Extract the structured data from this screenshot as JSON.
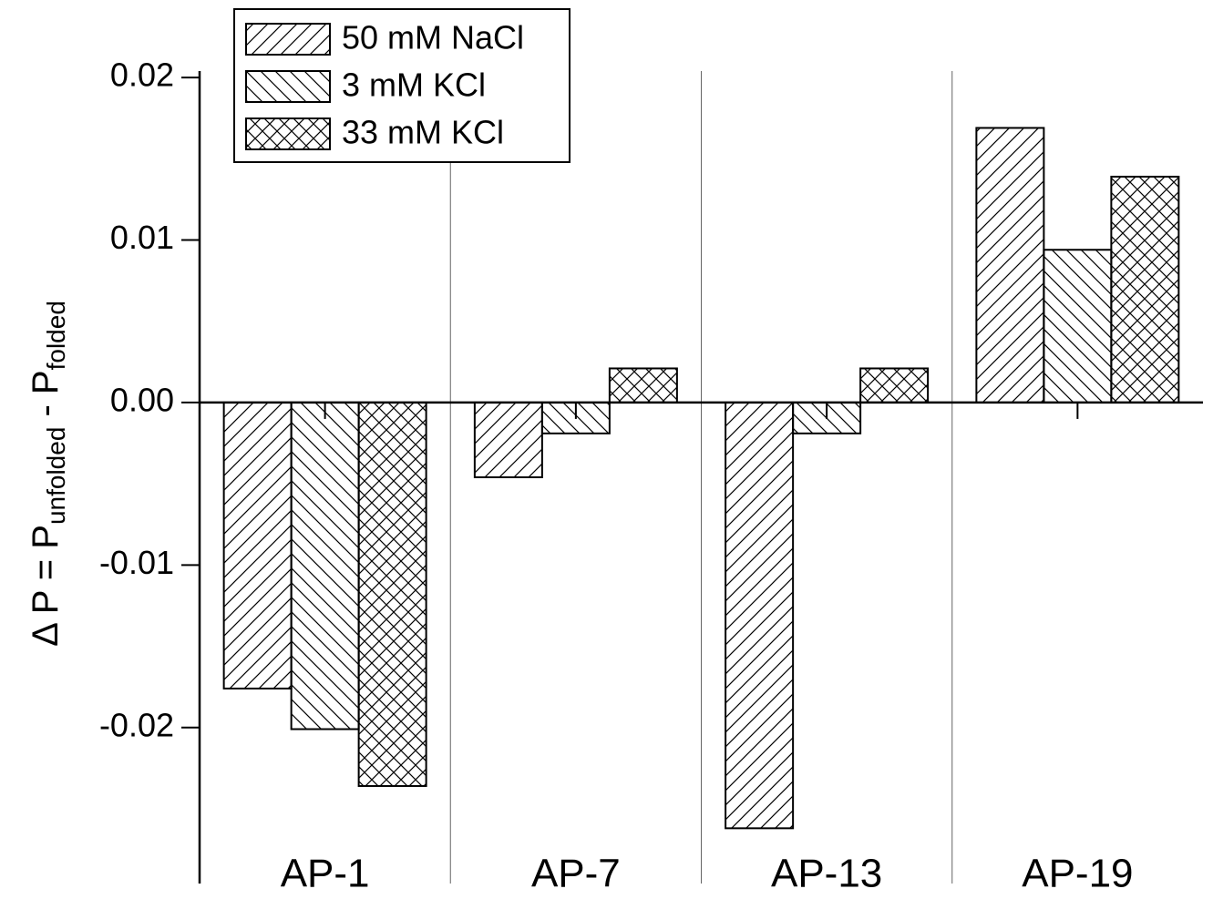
{
  "chart_data": {
    "type": "bar",
    "ylabel": {
      "main": "Δ P = P",
      "sub1": "unfolded",
      "mid": " - P",
      "sub2": "folded"
    },
    "categories": [
      "AP-1",
      "AP-7",
      "AP-13",
      "AP-19"
    ],
    "series": [
      {
        "name": "50 mM NaCl",
        "color": "#000000",
        "hatch": "/",
        "values": [
          -0.0176,
          -0.0046,
          -0.0262,
          0.0169
        ]
      },
      {
        "name": "3 mM KCl",
        "color": "#000000",
        "hatch": "\\",
        "values": [
          -0.0201,
          -0.0019,
          -0.0019,
          0.0094
        ]
      },
      {
        "name": "33 mM KCl",
        "color": "#000000",
        "hatch": "x",
        "values": [
          -0.0236,
          0.0021,
          0.0021,
          0.0139
        ]
      }
    ],
    "ylim": [
      -0.0296,
      0.0204
    ],
    "yticks": [
      -0.02,
      -0.01,
      {
        "value": 0,
        "label": "0.00"
      },
      0.01,
      0.02
    ],
    "legend": "top-left"
  }
}
